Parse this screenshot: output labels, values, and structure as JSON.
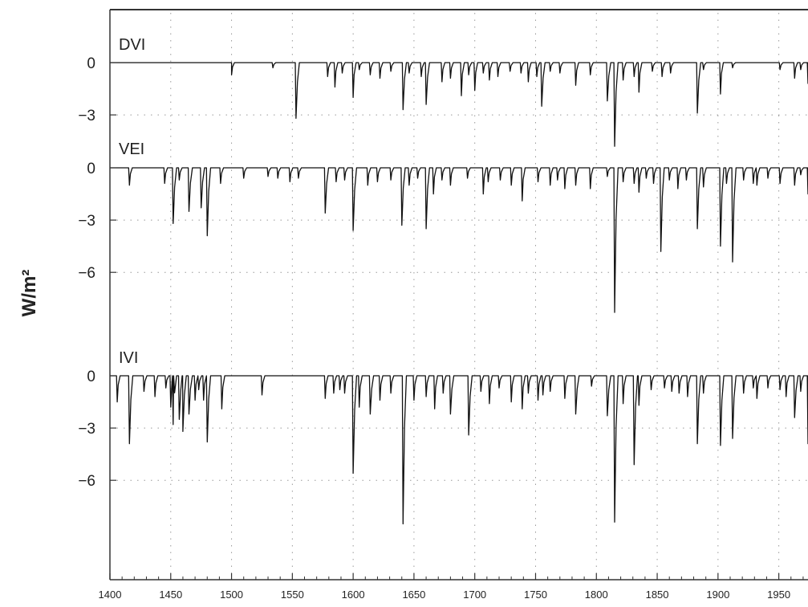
{
  "chart_data": {
    "type": "line",
    "ylabel": "W/m²",
    "xlim": [
      1400,
      1974
    ],
    "xticks": [
      1400,
      1450,
      1500,
      1550,
      1600,
      1650,
      1700,
      1750,
      1800,
      1850,
      1900,
      1950
    ],
    "xtick_labels": [
      "1400",
      "1450",
      "1500",
      "1550",
      "1600",
      "1650",
      "1700",
      "1750",
      "1800",
      "1850",
      "1900",
      "1950"
    ],
    "grid": true,
    "panels": [
      {
        "name": "DVI",
        "yticks": [
          0,
          -3
        ],
        "ytick_labels": [
          "0",
          "-3"
        ],
        "start_year": 1500,
        "eruptions": [
          [
            1500,
            -0.7
          ],
          [
            1534,
            -0.3
          ],
          [
            1553,
            -3.2
          ],
          [
            1579,
            -0.8
          ],
          [
            1585,
            -1.4
          ],
          [
            1591,
            -0.6
          ],
          [
            1600,
            -2.0
          ],
          [
            1605,
            -0.4
          ],
          [
            1614,
            -0.7
          ],
          [
            1622,
            -0.9
          ],
          [
            1631,
            -0.5
          ],
          [
            1641,
            -2.7
          ],
          [
            1646,
            -0.6
          ],
          [
            1656,
            -0.8
          ],
          [
            1660,
            -2.4
          ],
          [
            1673,
            -1.1
          ],
          [
            1680,
            -0.9
          ],
          [
            1689,
            -1.9
          ],
          [
            1695,
            -0.7
          ],
          [
            1700,
            -1.6
          ],
          [
            1707,
            -0.6
          ],
          [
            1712,
            -1.0
          ],
          [
            1719,
            -0.8
          ],
          [
            1729,
            -0.5
          ],
          [
            1738,
            -0.6
          ],
          [
            1744,
            -1.1
          ],
          [
            1751,
            -0.8
          ],
          [
            1755,
            -2.5
          ],
          [
            1762,
            -0.5
          ],
          [
            1770,
            -0.6
          ],
          [
            1783,
            -1.3
          ],
          [
            1795,
            -0.7
          ],
          [
            1809,
            -2.2
          ],
          [
            1815,
            -4.8
          ],
          [
            1822,
            -1.0
          ],
          [
            1831,
            -0.8
          ],
          [
            1835,
            -1.7
          ],
          [
            1846,
            -0.5
          ],
          [
            1854,
            -0.8
          ],
          [
            1861,
            -0.6
          ],
          [
            1883,
            -2.9
          ],
          [
            1888,
            -0.4
          ],
          [
            1902,
            -1.8
          ],
          [
            1912,
            -0.3
          ],
          [
            1951,
            -0.4
          ],
          [
            1963,
            -0.9
          ],
          [
            1968,
            -0.4
          ],
          [
            1974,
            -1.2
          ]
        ]
      },
      {
        "name": "VEI",
        "yticks": [
          0,
          -3,
          -6
        ],
        "ytick_labels": [
          "0",
          "-3",
          "-6"
        ],
        "start_year": 1400,
        "eruptions": [
          [
            1416,
            -1.0
          ],
          [
            1445,
            -0.9
          ],
          [
            1452,
            -3.2
          ],
          [
            1457,
            -0.7
          ],
          [
            1465,
            -2.5
          ],
          [
            1475,
            -2.3
          ],
          [
            1480,
            -3.9
          ],
          [
            1491,
            -0.9
          ],
          [
            1510,
            -0.6
          ],
          [
            1530,
            -0.5
          ],
          [
            1538,
            -0.6
          ],
          [
            1548,
            -0.8
          ],
          [
            1555,
            -0.6
          ],
          [
            1577,
            -2.6
          ],
          [
            1586,
            -0.8
          ],
          [
            1593,
            -0.7
          ],
          [
            1600,
            -3.6
          ],
          [
            1612,
            -1.0
          ],
          [
            1620,
            -0.8
          ],
          [
            1631,
            -0.7
          ],
          [
            1640,
            -3.3
          ],
          [
            1646,
            -1.0
          ],
          [
            1653,
            -0.6
          ],
          [
            1660,
            -3.5
          ],
          [
            1666,
            -1.5
          ],
          [
            1673,
            -0.7
          ],
          [
            1680,
            -1.0
          ],
          [
            1694,
            -0.6
          ],
          [
            1707,
            -1.5
          ],
          [
            1711,
            -0.8
          ],
          [
            1721,
            -0.7
          ],
          [
            1730,
            -1.0
          ],
          [
            1739,
            -1.9
          ],
          [
            1752,
            -0.8
          ],
          [
            1762,
            -1.0
          ],
          [
            1768,
            -0.7
          ],
          [
            1774,
            -1.2
          ],
          [
            1783,
            -1.0
          ],
          [
            1795,
            -1.2
          ],
          [
            1809,
            -0.5
          ],
          [
            1815,
            -8.3
          ],
          [
            1822,
            -0.8
          ],
          [
            1831,
            -0.9
          ],
          [
            1835,
            -1.4
          ],
          [
            1841,
            -0.6
          ],
          [
            1847,
            -0.9
          ],
          [
            1853,
            -4.8
          ],
          [
            1860,
            -0.7
          ],
          [
            1867,
            -1.2
          ],
          [
            1874,
            -0.7
          ],
          [
            1883,
            -3.5
          ],
          [
            1888,
            -1.1
          ],
          [
            1902,
            -4.5
          ],
          [
            1907,
            -0.9
          ],
          [
            1912,
            -5.4
          ],
          [
            1921,
            -0.7
          ],
          [
            1929,
            -0.9
          ],
          [
            1932,
            -1.0
          ],
          [
            1941,
            -0.6
          ],
          [
            1951,
            -0.9
          ],
          [
            1963,
            -1.0
          ],
          [
            1968,
            -0.4
          ],
          [
            1974,
            -1.5
          ]
        ]
      },
      {
        "name": "IVI",
        "yticks": [
          0,
          -3,
          -6
        ],
        "ytick_labels": [
          "0",
          "-3",
          "-6"
        ],
        "start_year": 1400,
        "eruptions": [
          [
            1406,
            -1.5
          ],
          [
            1416,
            -3.9
          ],
          [
            1428,
            -0.9
          ],
          [
            1437,
            -1.2
          ],
          [
            1446,
            -0.7
          ],
          [
            1450,
            -1.8
          ],
          [
            1452,
            -2.8
          ],
          [
            1457,
            -2.5
          ],
          [
            1460,
            -3.2
          ],
          [
            1465,
            -2.2
          ],
          [
            1470,
            -1.4
          ],
          [
            1473,
            -0.8
          ],
          [
            1477,
            -1.4
          ],
          [
            1480,
            -3.8
          ],
          [
            1492,
            -1.9
          ],
          [
            1525,
            -1.1
          ],
          [
            1577,
            -1.3
          ],
          [
            1584,
            -1.0
          ],
          [
            1589,
            -0.8
          ],
          [
            1593,
            -1.0
          ],
          [
            1600,
            -5.6
          ],
          [
            1605,
            -1.8
          ],
          [
            1614,
            -2.2
          ],
          [
            1622,
            -1.4
          ],
          [
            1631,
            -1.0
          ],
          [
            1641,
            -8.5
          ],
          [
            1650,
            -1.4
          ],
          [
            1660,
            -1.2
          ],
          [
            1667,
            -1.9
          ],
          [
            1674,
            -1.0
          ],
          [
            1680,
            -2.2
          ],
          [
            1695,
            -3.4
          ],
          [
            1705,
            -0.9
          ],
          [
            1712,
            -1.6
          ],
          [
            1720,
            -0.7
          ],
          [
            1730,
            -1.5
          ],
          [
            1739,
            -1.9
          ],
          [
            1744,
            -1.0
          ],
          [
            1752,
            -1.4
          ],
          [
            1756,
            -1.1
          ],
          [
            1762,
            -0.9
          ],
          [
            1774,
            -1.3
          ],
          [
            1783,
            -2.2
          ],
          [
            1796,
            -0.6
          ],
          [
            1809,
            -2.3
          ],
          [
            1815,
            -8.4
          ],
          [
            1822,
            -1.6
          ],
          [
            1831,
            -5.1
          ],
          [
            1835,
            -1.7
          ],
          [
            1845,
            -0.8
          ],
          [
            1856,
            -0.7
          ],
          [
            1862,
            -0.9
          ],
          [
            1868,
            -1.0
          ],
          [
            1875,
            -1.2
          ],
          [
            1883,
            -3.9
          ],
          [
            1888,
            -1.0
          ],
          [
            1902,
            -4.0
          ],
          [
            1912,
            -3.6
          ],
          [
            1921,
            -1.0
          ],
          [
            1929,
            -0.7
          ],
          [
            1932,
            -1.3
          ],
          [
            1941,
            -0.7
          ],
          [
            1951,
            -0.8
          ],
          [
            1956,
            -1.2
          ],
          [
            1963,
            -2.4
          ],
          [
            1968,
            -0.9
          ],
          [
            1974,
            -3.9
          ]
        ]
      }
    ]
  }
}
